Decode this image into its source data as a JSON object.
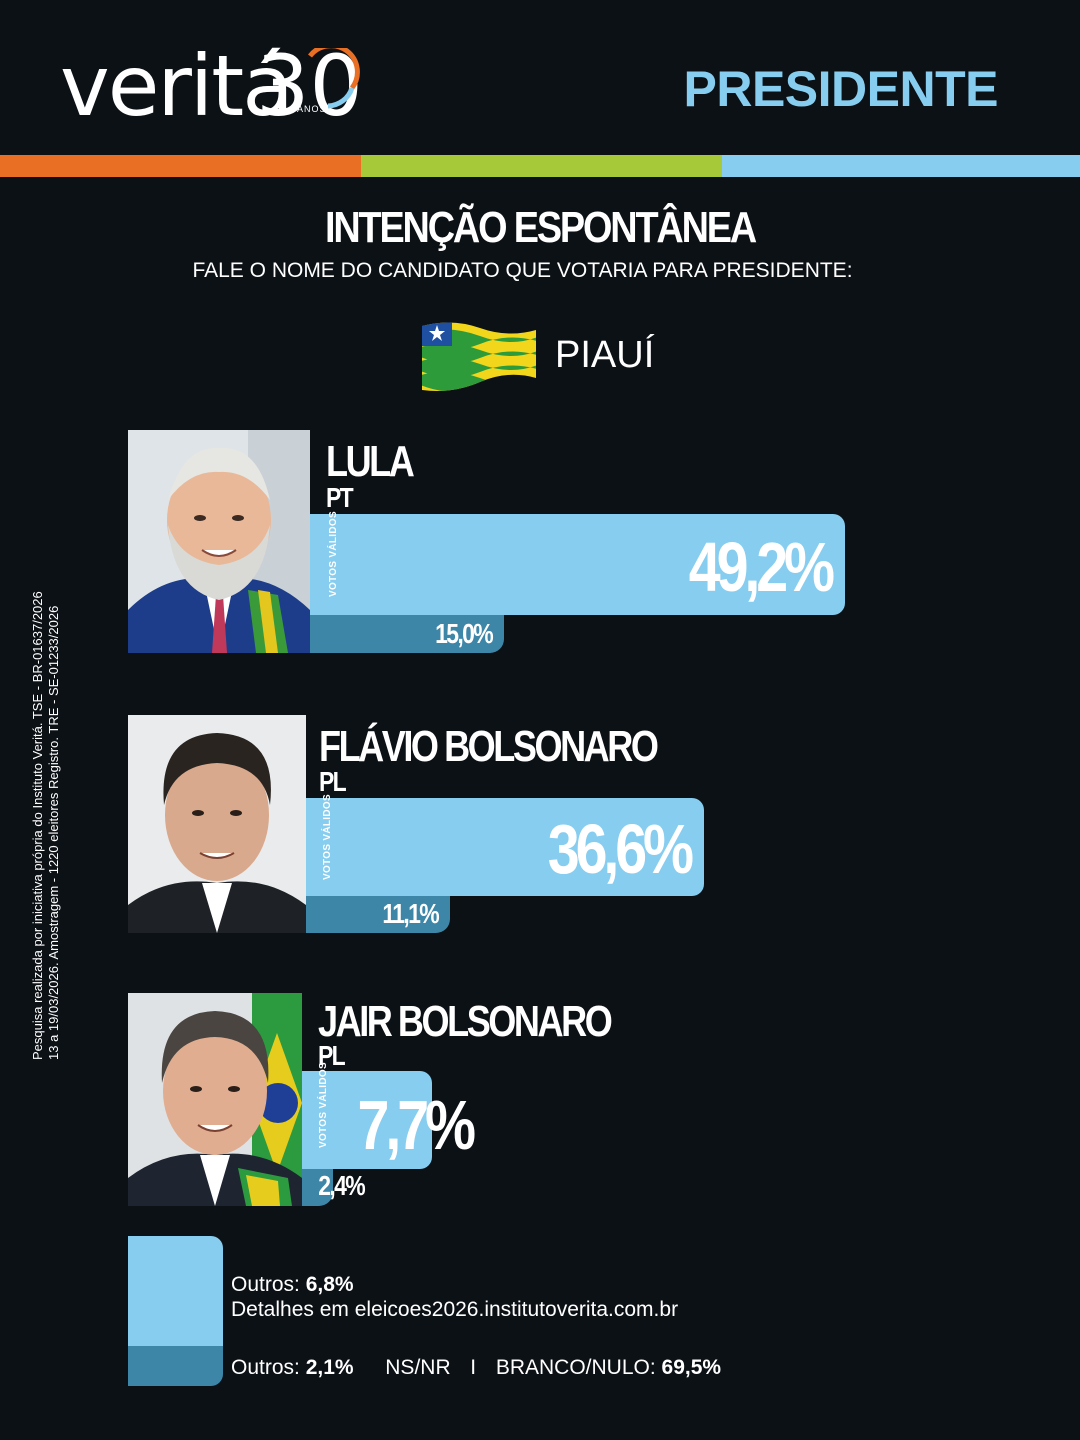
{
  "brand": {
    "logo_word": "veritá",
    "logo_number": "30",
    "logo_sub": "ANOS",
    "section": "PRESIDENTE",
    "strip_colors": [
      "#e86f23",
      "#a6c93a",
      "#86cdf0"
    ]
  },
  "survey": {
    "title": "INTENÇÃO ESPONTÂNEA",
    "question": "FALE O NOME DO CANDIDATO QUE VOTARIA PARA PRESIDENTE:",
    "state": "PIAUÍ",
    "side_note_line1": "Pesquisa realizada por iniciativa própria do Instituto Veritá. TSE - BR-01637/2026",
    "side_note_line2": "13 a 19/03/2026. Amostragem - 1220 eleitores Registro. TRE - SE-01233/2026"
  },
  "chart_data": {
    "type": "bar",
    "categories": [
      "LULA",
      "FLÁVIO BOLSONARO",
      "JAIR BOLSONARO"
    ],
    "parties": [
      "PT",
      "PL",
      "PL"
    ],
    "series": [
      {
        "name": "VOTOS VÁLIDOS",
        "values": [
          49.2,
          36.6,
          7.7
        ]
      },
      {
        "values": [
          15.0,
          11.1,
          2.4
        ]
      }
    ],
    "value_labels_main": [
      "49,2%",
      "36,6%",
      "7,7%"
    ],
    "value_labels_sub": [
      "15,0%",
      "11,1%",
      "2,4%"
    ],
    "bar_label": "VOTOS VÁLIDOS",
    "colors": {
      "main": "#86cdf0",
      "sub": "#3d86a8"
    }
  },
  "footer": {
    "others_valid_label": "Outros:",
    "others_valid_value": "6,8%",
    "details": "Detalhes em eleicoes2026.institutoverita.com.br",
    "others_total_label": "Outros:",
    "others_total_value": "2,1%",
    "nsnr": "NS/NR",
    "separator": "I",
    "blank_label": "BRANCO/NULO:",
    "blank_value": "69,5%"
  }
}
